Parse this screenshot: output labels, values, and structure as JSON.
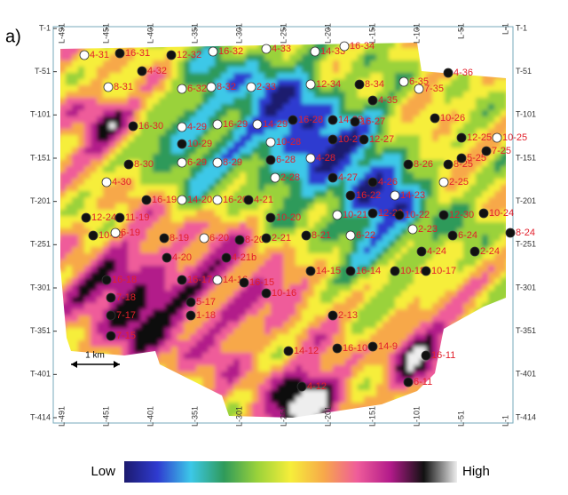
{
  "panel_label": "a)",
  "inline_labels": [
    "L-491",
    "L-451",
    "L-401",
    "L-351",
    "L-301",
    "L-251",
    "L-201",
    "L-151",
    "L-101",
    "L-51",
    "L-1"
  ],
  "crossline_labels": [
    "T-1",
    "T-51",
    "T-101",
    "T-151",
    "T-201",
    "T-251",
    "T-301",
    "T-351",
    "T-401",
    "T-414"
  ],
  "wells": [
    "4-31",
    "16-31",
    "12-32",
    "16-32",
    "4-33",
    "14-33",
    "16-34",
    "4-32",
    "8-31",
    "6-32",
    "8-32",
    "2-33",
    "12-34",
    "8-34",
    "6-35",
    "7-35",
    "4-36",
    "4-35",
    "16-30",
    "4-29",
    "16-29",
    "14-29",
    "16-28",
    "14-28",
    "16-27",
    "10-26",
    "12-25",
    "10-25",
    "10-29",
    "10-28",
    "10-27",
    "12-27",
    "8-26",
    "8-25",
    "5-25",
    "7-25",
    "8-30",
    "6-29",
    "8-29",
    "6-28",
    "4-28",
    "4-27",
    "2-25",
    "4-30",
    "16-19",
    "14-20",
    "16-20",
    "4-21",
    "2-28",
    "4-26",
    "14-23",
    "16-22",
    "12-29",
    "10-24",
    "10-20",
    "10-21",
    "10-22",
    "12-30",
    "12-24",
    "11-19",
    "10-19",
    "6-19",
    "8-19",
    "6-20",
    "8-20",
    "2-21",
    "8-21",
    "6-22",
    "2-23",
    "6-24",
    "8-24",
    "4-24",
    "2-24",
    "4-20",
    "16-18",
    "4-21b",
    "16-17",
    "14-16",
    "16-15",
    "14-15",
    "16-14",
    "10-18",
    "10-17",
    "10-16",
    "7-18",
    "7-17",
    "5-17",
    "1-18",
    "7-15",
    "2-13",
    "14-12",
    "16-10",
    "14-9",
    "16-11",
    "6-11",
    "4-12"
  ],
  "scale_bar": "1 km",
  "colorbar": {
    "low": "Low",
    "high": "High"
  }
}
